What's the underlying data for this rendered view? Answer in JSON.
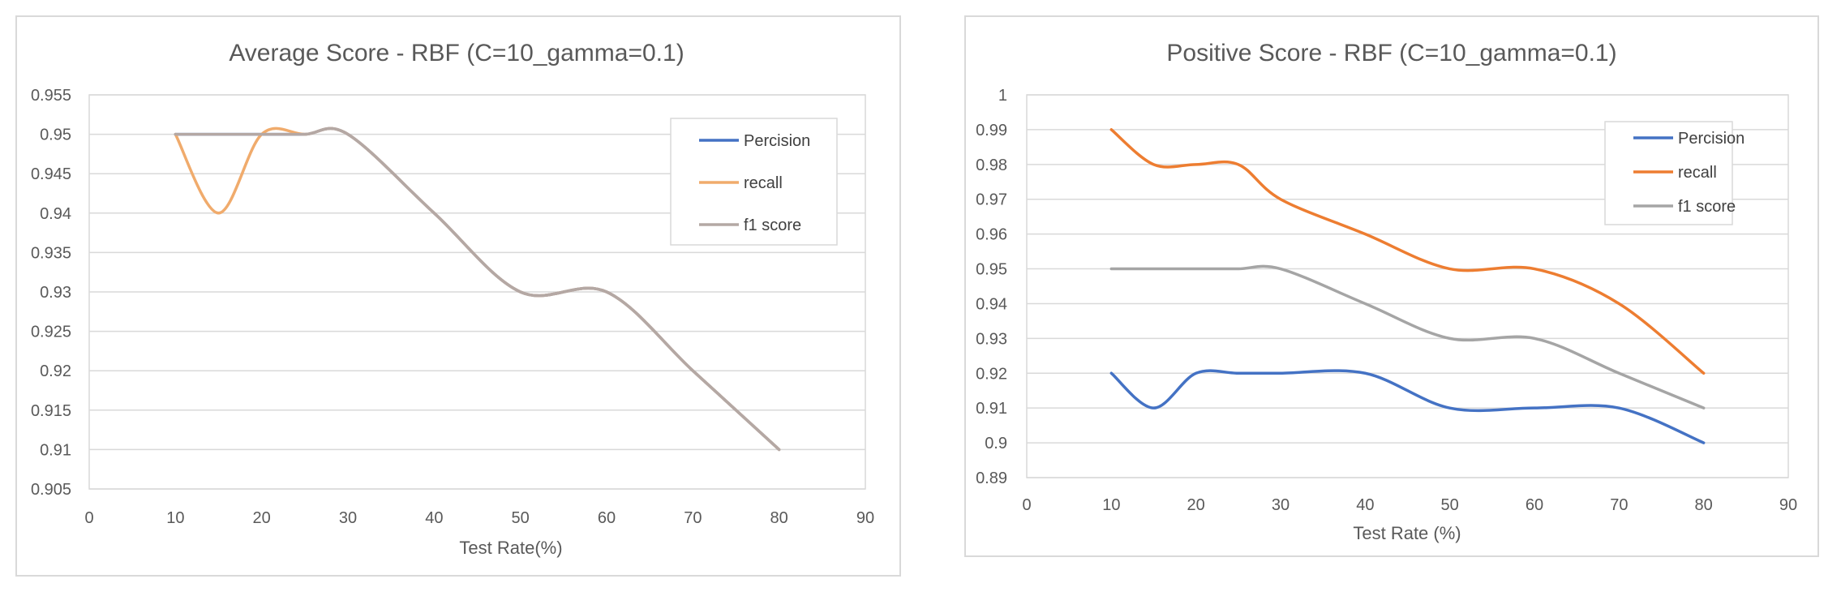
{
  "chart_data": [
    {
      "type": "line",
      "title": "Average Score - RBF (C=10_gamma=0.1)",
      "xlabel": "Test Rate(%)",
      "ylabel": "",
      "xlim": [
        0,
        90
      ],
      "ylim": [
        0.905,
        0.955
      ],
      "x_ticks": [
        0,
        10,
        20,
        30,
        40,
        50,
        60,
        70,
        80,
        90
      ],
      "y_ticks": [
        0.905,
        0.91,
        0.915,
        0.92,
        0.925,
        0.93,
        0.935,
        0.94,
        0.945,
        0.95,
        0.955
      ],
      "x_tick_labels": [
        "0",
        "10",
        "20",
        "30",
        "40",
        "50",
        "60",
        "70",
        "80",
        "90"
      ],
      "y_tick_labels": [
        "0.905",
        "0.91",
        "0.915",
        "0.92",
        "0.925",
        "0.93",
        "0.935",
        "0.94",
        "0.945",
        "0.95",
        "0.955"
      ],
      "grid": true,
      "smooth": true,
      "legend_position": "top-right",
      "x": [
        10,
        15,
        20,
        25,
        30,
        40,
        50,
        60,
        70,
        80
      ],
      "series": [
        {
          "name": "Percision",
          "color": "#4472c4",
          "values": [
            0.95,
            0.95,
            0.95,
            0.95,
            0.95,
            0.94,
            0.93,
            0.93,
            0.92,
            0.91
          ]
        },
        {
          "name": "recall",
          "color": "#f0ab6c",
          "values": [
            0.95,
            0.94,
            0.95,
            0.95,
            0.95,
            0.94,
            0.93,
            0.93,
            0.92,
            0.91
          ]
        },
        {
          "name": "f1 score",
          "color": "#b4a8a4",
          "values": [
            0.95,
            0.95,
            0.95,
            0.95,
            0.95,
            0.94,
            0.93,
            0.93,
            0.92,
            0.91
          ]
        }
      ]
    },
    {
      "type": "line",
      "title": "Positive Score - RBF (C=10_gamma=0.1)",
      "xlabel": "Test Rate (%)",
      "ylabel": "",
      "xlim": [
        0,
        90
      ],
      "ylim": [
        0.89,
        1.0
      ],
      "x_ticks": [
        0,
        10,
        20,
        30,
        40,
        50,
        60,
        70,
        80,
        90
      ],
      "y_ticks": [
        0.89,
        0.9,
        0.91,
        0.92,
        0.93,
        0.94,
        0.95,
        0.96,
        0.97,
        0.98,
        0.99,
        1.0
      ],
      "x_tick_labels": [
        "0",
        "10",
        "20",
        "30",
        "40",
        "50",
        "60",
        "70",
        "80",
        "90"
      ],
      "y_tick_labels": [
        "0.89",
        "0.9",
        "0.91",
        "0.92",
        "0.93",
        "0.94",
        "0.95",
        "0.96",
        "0.97",
        "0.98",
        "0.99",
        "1"
      ],
      "grid": true,
      "smooth": true,
      "legend_position": "top-right",
      "x": [
        10,
        15,
        20,
        25,
        30,
        40,
        50,
        60,
        70,
        80
      ],
      "series": [
        {
          "name": "Percision",
          "color": "#4472c4",
          "values": [
            0.92,
            0.91,
            0.92,
            0.92,
            0.92,
            0.92,
            0.91,
            0.91,
            0.91,
            0.9
          ]
        },
        {
          "name": "recall",
          "color": "#ed7d31",
          "values": [
            0.99,
            0.98,
            0.98,
            0.98,
            0.97,
            0.96,
            0.95,
            0.95,
            0.94,
            0.92
          ]
        },
        {
          "name": "f1 score",
          "color": "#a5a5a5",
          "values": [
            0.95,
            0.95,
            0.95,
            0.95,
            0.95,
            0.94,
            0.93,
            0.93,
            0.92,
            0.91
          ]
        }
      ]
    }
  ]
}
